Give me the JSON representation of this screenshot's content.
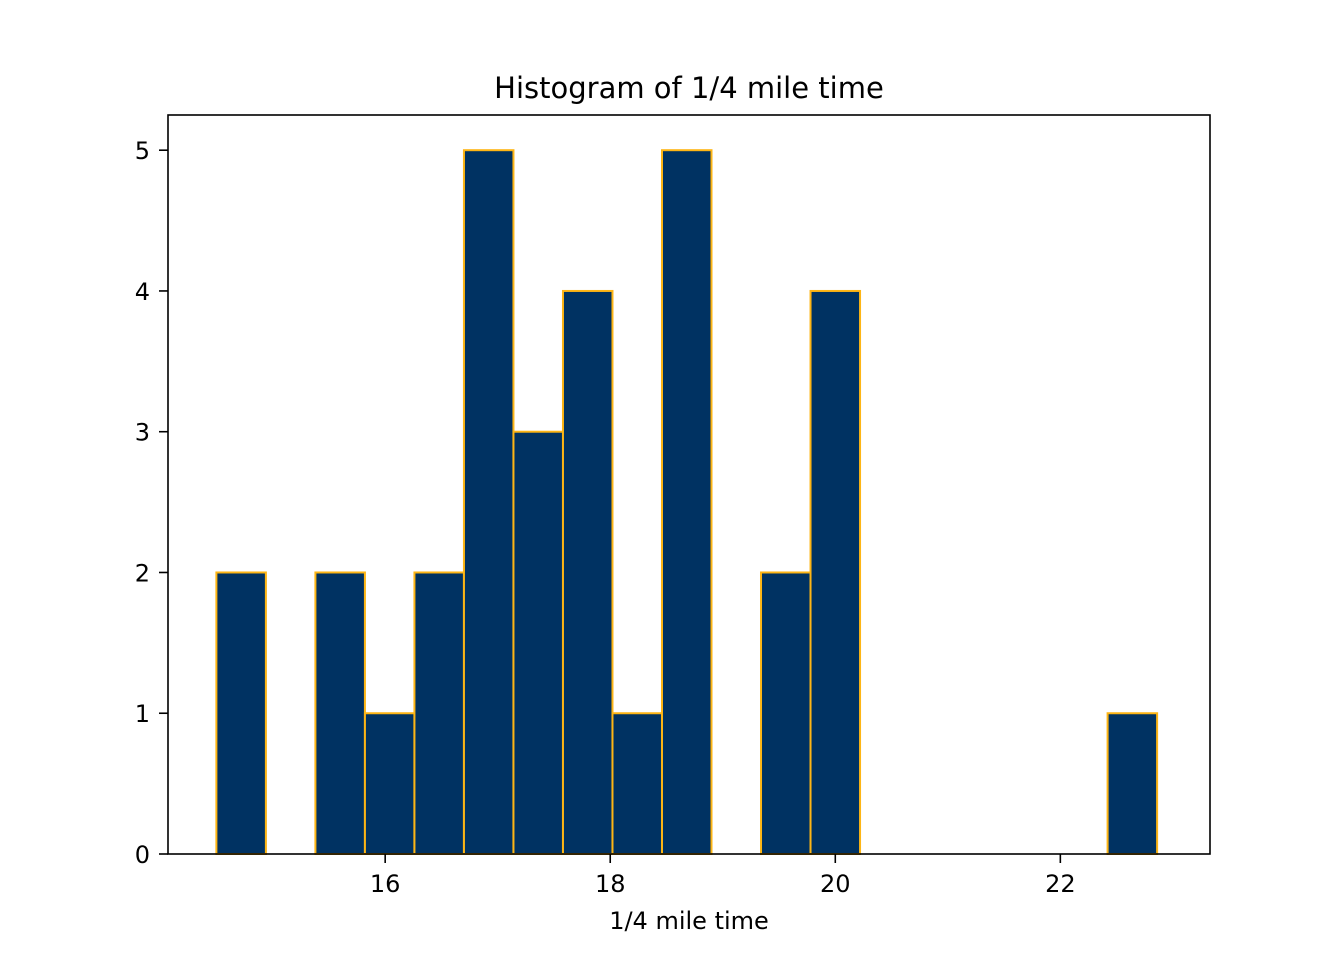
{
  "chart_data": {
    "type": "bar",
    "title": "Histogram of 1/4 mile time",
    "xlabel": "1/4 mile time",
    "ylabel": "",
    "xlim": [
      14.07,
      23.33
    ],
    "ylim": [
      0,
      5.25
    ],
    "bin_edges": [
      14.5,
      14.94,
      15.38,
      15.82,
      16.26,
      16.7,
      17.14,
      17.58,
      18.02,
      18.46,
      18.9,
      19.34,
      19.78,
      20.22,
      20.66,
      21.1,
      21.54,
      21.98,
      22.42,
      22.86
    ],
    "counts": [
      2,
      0,
      2,
      1,
      2,
      5,
      3,
      4,
      1,
      5,
      0,
      2,
      4,
      0,
      0,
      0,
      0,
      0,
      1
    ],
    "x_ticks": [
      16,
      18,
      20,
      22
    ],
    "y_ticks": [
      0,
      1,
      2,
      3,
      4,
      5
    ],
    "grid": false,
    "legend": "none",
    "colors": {
      "bar_fill": "#003262",
      "bar_edge": "#FDB515",
      "axes": "#000000",
      "background": "#ffffff"
    }
  }
}
